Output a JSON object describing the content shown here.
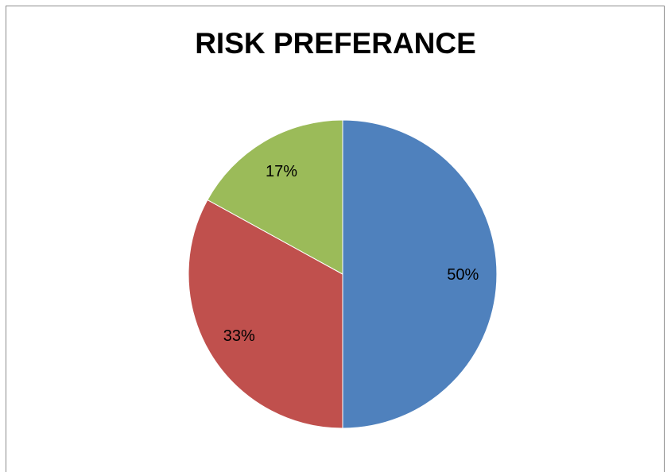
{
  "chart_data": {
    "type": "pie",
    "title": "RISK PREFERANCE",
    "slices": [
      {
        "value": 50,
        "label": "50%",
        "color": "#4F81BD"
      },
      {
        "value": 33,
        "label": "33%",
        "color": "#C0504D"
      },
      {
        "value": 17,
        "label": "17%",
        "color": "#9BBB59"
      }
    ],
    "start_angle_deg": 0,
    "direction": "clockwise",
    "legend": "none"
  }
}
